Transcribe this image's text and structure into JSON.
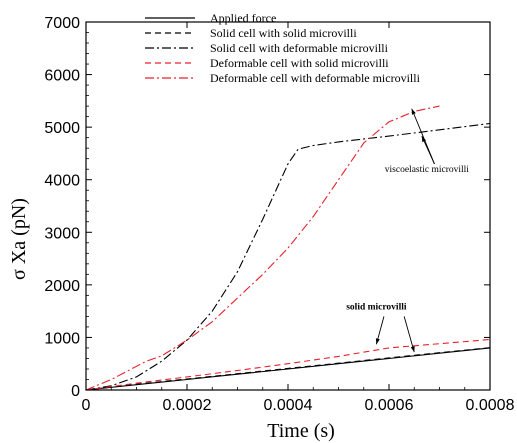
{
  "chart_data": {
    "type": "line",
    "xlabel": "Time (s)",
    "ylabel": "σ Xa (pN)",
    "xlim": [
      0,
      0.0008
    ],
    "ylim": [
      0,
      7000
    ],
    "x_ticks": [
      "0",
      "0.0002",
      "0.0004",
      "0.0006",
      "0.0008"
    ],
    "y_ticks": [
      "0",
      "1000",
      "2000",
      "3000",
      "4000",
      "5000",
      "6000",
      "7000"
    ],
    "legend_position": "top-center",
    "series": [
      {
        "name": "Applied force",
        "color": "#000000",
        "style": "solid",
        "x": [
          0,
          0.0001,
          0.0002,
          0.0003,
          0.0004,
          0.0005,
          0.0006,
          0.0007,
          0.0008
        ],
        "y": [
          0,
          100,
          200,
          300,
          400,
          500,
          600,
          700,
          800
        ]
      },
      {
        "name": "Solid cell with solid microvilli",
        "color": "#000000",
        "style": "dashed",
        "x": [
          0,
          0.0001,
          0.0002,
          0.0003,
          0.0004,
          0.0005,
          0.0006,
          0.0007,
          0.0008
        ],
        "y": [
          0,
          110,
          210,
          310,
          410,
          510,
          610,
          710,
          805
        ]
      },
      {
        "name": "Solid cell with deformable microvilli",
        "color": "#000000",
        "style": "dashdot",
        "x": [
          0,
          5e-05,
          0.0001,
          0.00015,
          0.0002,
          0.00025,
          0.0003,
          0.00035,
          0.0004,
          0.00042,
          0.00045,
          0.0005,
          0.0006,
          0.0007,
          0.0008
        ],
        "y": [
          0,
          80,
          250,
          550,
          950,
          1500,
          2250,
          3250,
          4300,
          4580,
          4650,
          4720,
          4830,
          4950,
          5070
        ]
      },
      {
        "name": "Deformable cell with solid microvilli",
        "color": "#e8202a",
        "style": "dashed",
        "x": [
          0,
          0.0001,
          0.0002,
          0.0003,
          0.0004,
          0.0005,
          0.0006,
          0.0007,
          0.0008
        ],
        "y": [
          0,
          130,
          250,
          370,
          500,
          640,
          800,
          880,
          960
        ]
      },
      {
        "name": "Deformable cell with deformable microvilli",
        "color": "#e8202a",
        "style": "dashdot",
        "x": [
          0,
          5e-05,
          0.0001,
          0.00012,
          0.00015,
          0.0002,
          0.00025,
          0.0003,
          0.00035,
          0.0004,
          0.00045,
          0.0005,
          0.00055,
          0.0006,
          0.00065,
          0.0007
        ],
        "y": [
          0,
          200,
          450,
          550,
          650,
          950,
          1300,
          1750,
          2200,
          2700,
          3300,
          4000,
          4700,
          5100,
          5300,
          5400
        ]
      }
    ],
    "annotations": [
      {
        "text": "viscoelastic microvilli",
        "x": 0.000675,
        "y": 4150,
        "bold": false,
        "arrows": [
          [
            0.00069,
            4300,
            0.000645,
            5350
          ],
          [
            0.00069,
            4300,
            0.000665,
            4830
          ]
        ]
      },
      {
        "text": "solid microvilli",
        "x": 0.000575,
        "y": 1530,
        "bold": true,
        "arrows": [
          [
            0.00059,
            1400,
            0.000575,
            870
          ],
          [
            0.00063,
            1400,
            0.00065,
            720
          ]
        ]
      }
    ]
  }
}
